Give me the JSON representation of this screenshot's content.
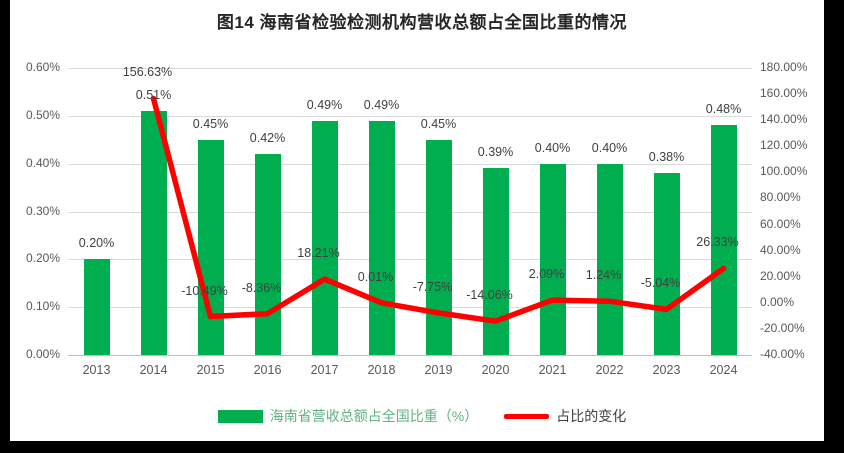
{
  "chart_data": {
    "type": "bar+line combo",
    "title": "图14 海南省检验检测机构营收总额占全国比重的情况",
    "categories": [
      "2013",
      "2014",
      "2015",
      "2016",
      "2017",
      "2018",
      "2019",
      "2020",
      "2021",
      "2022",
      "2023",
      "2024"
    ],
    "series": [
      {
        "name": "海南省营收总额占全国比重（%）",
        "type": "bar",
        "axis": "left",
        "values": [
          0.2,
          0.51,
          0.45,
          0.42,
          0.49,
          0.49,
          0.45,
          0.39,
          0.4,
          0.4,
          0.38,
          0.48
        ],
        "labels": [
          "0.20%",
          "0.51%",
          "0.45%",
          "0.42%",
          "0.49%",
          "0.49%",
          "0.45%",
          "0.39%",
          "0.40%",
          "0.40%",
          "0.38%",
          "0.48%"
        ]
      },
      {
        "name": "占比的变化",
        "type": "line",
        "axis": "right",
        "values": [
          null,
          156.63,
          -10.49,
          -8.36,
          18.21,
          0.01,
          -7.75,
          -14.06,
          2.09,
          1.24,
          -5.04,
          26.33
        ],
        "labels": [
          null,
          "156.63%",
          "-10.49%",
          "-8.36%",
          "18.21%",
          "0.01%",
          "-7.75%",
          "-14.06%",
          "2.09%",
          "1.24%",
          "-5.04%",
          "26.33%"
        ]
      }
    ],
    "left_axis": {
      "min": 0,
      "max": 0.6,
      "ticks": [
        "0.60%",
        "0.50%",
        "0.40%",
        "0.30%",
        "0.20%",
        "0.10%",
        "0.00%"
      ]
    },
    "right_axis": {
      "min": -40,
      "max": 180,
      "ticks": [
        "180.00%",
        "160.00%",
        "140.00%",
        "120.00%",
        "100.00%",
        "80.00%",
        "60.00%",
        "40.00%",
        "20.00%",
        "0.00%",
        "-20.00%",
        "-40.00%"
      ]
    },
    "legend": [
      {
        "label": "海南省营收总额占全国比重（%）",
        "swatch": "bar"
      },
      {
        "label": "占比的变化",
        "swatch": "line"
      }
    ],
    "grid": true,
    "legend_position": "bottom"
  },
  "colors": {
    "bar": "#00AE50",
    "line": "#FF0000",
    "grid": "#D9D9D9",
    "axis_labels": "#595959",
    "data_labels": "#404040",
    "title": "#262626",
    "legend_bar_label": "#63B284",
    "legend_line_label": "#404040",
    "frame": "#000000"
  }
}
